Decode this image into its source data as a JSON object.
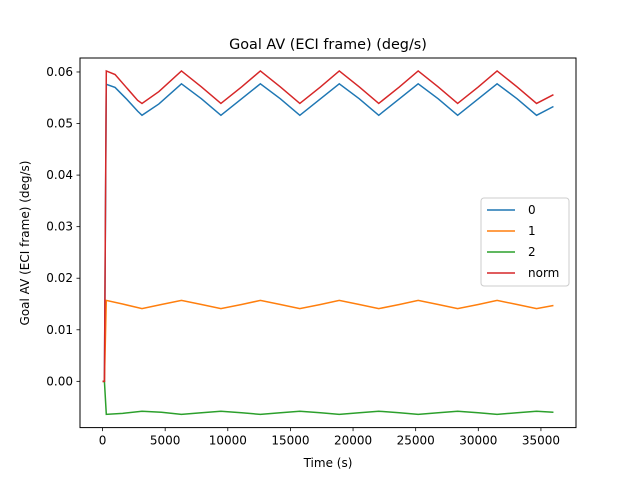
{
  "chart_data": {
    "type": "line",
    "title": "Goal AV (ECI frame) (deg/s)",
    "xlabel": "Time (s)",
    "ylabel": "Goal AV (ECI frame) (deg/s)",
    "xlim": [
      -1800,
      37800
    ],
    "ylim": [
      -0.00897,
      0.06271
    ],
    "xticks": [
      0,
      5000,
      10000,
      15000,
      20000,
      25000,
      30000,
      35000
    ],
    "xtick_labels": [
      "0",
      "5000",
      "10000",
      "15000",
      "20000",
      "25000",
      "30000",
      "35000"
    ],
    "yticks": [
      0.0,
      0.01,
      0.02,
      0.03,
      0.04,
      0.05,
      0.06
    ],
    "ytick_labels": [
      "0.00",
      "0.01",
      "0.02",
      "0.03",
      "0.04",
      "0.05",
      "0.06"
    ],
    "grid": false,
    "legend_position": "center-right",
    "series": [
      {
        "name": "0",
        "color": "#1f77b4",
        "x": [
          0,
          150,
          300,
          1000,
          1900,
          2800,
          3150,
          4500,
          6300,
          7900,
          9450,
          11100,
          12600,
          14200,
          15750,
          17400,
          18900,
          20500,
          22050,
          23700,
          25200,
          26800,
          28350,
          30000,
          31500,
          33100,
          34650,
          36000
        ],
        "y": [
          0.0,
          0.0,
          0.0576,
          0.057,
          0.0548,
          0.0524,
          0.0516,
          0.0538,
          0.0577,
          0.0548,
          0.0516,
          0.0548,
          0.0577,
          0.0548,
          0.0516,
          0.0548,
          0.0577,
          0.0548,
          0.0516,
          0.0548,
          0.0577,
          0.0548,
          0.0516,
          0.0548,
          0.0577,
          0.0548,
          0.0516,
          0.0533
        ]
      },
      {
        "name": "1",
        "color": "#ff7f0e",
        "x": [
          0,
          150,
          300,
          1600,
          3150,
          4700,
          6300,
          7900,
          9450,
          11100,
          12600,
          14200,
          15750,
          17400,
          18900,
          20500,
          22050,
          23700,
          25200,
          26800,
          28350,
          30000,
          31500,
          33100,
          34650,
          36000
        ],
        "y": [
          0.0,
          0.0,
          0.0157,
          0.015,
          0.0141,
          0.0149,
          0.0157,
          0.0149,
          0.0141,
          0.0149,
          0.0157,
          0.0149,
          0.0141,
          0.0149,
          0.0157,
          0.0149,
          0.0141,
          0.0149,
          0.0157,
          0.0149,
          0.0141,
          0.0149,
          0.0157,
          0.0149,
          0.0141,
          0.0147
        ]
      },
      {
        "name": "2",
        "color": "#2ca02c",
        "x": [
          0,
          150,
          300,
          1600,
          3150,
          4700,
          6300,
          7900,
          9450,
          11100,
          12600,
          14200,
          15750,
          17400,
          18900,
          20500,
          22050,
          23700,
          25200,
          26800,
          28350,
          30000,
          31500,
          33100,
          34650,
          36000
        ],
        "y": [
          0.0,
          0.0,
          -0.0064,
          -0.0062,
          -0.0058,
          -0.006,
          -0.0064,
          -0.0061,
          -0.0058,
          -0.0061,
          -0.0064,
          -0.0061,
          -0.0058,
          -0.0061,
          -0.0064,
          -0.0061,
          -0.0058,
          -0.0061,
          -0.0064,
          -0.0061,
          -0.0058,
          -0.0061,
          -0.0064,
          -0.0061,
          -0.0058,
          -0.006
        ]
      },
      {
        "name": "norm",
        "color": "#d62728",
        "x": [
          0,
          150,
          300,
          1000,
          1900,
          2800,
          3150,
          4500,
          6300,
          7900,
          9450,
          11100,
          12600,
          14200,
          15750,
          17400,
          18900,
          20500,
          22050,
          23700,
          25200,
          26800,
          28350,
          30000,
          31500,
          33100,
          34650,
          36000
        ],
        "y": [
          0.0,
          0.0,
          0.0602,
          0.0595,
          0.057,
          0.0545,
          0.0539,
          0.0562,
          0.0602,
          0.0571,
          0.0539,
          0.0571,
          0.0602,
          0.0571,
          0.0539,
          0.0571,
          0.0602,
          0.0571,
          0.0539,
          0.0571,
          0.0602,
          0.0571,
          0.0539,
          0.0571,
          0.0602,
          0.0571,
          0.0539,
          0.0556
        ]
      }
    ]
  }
}
